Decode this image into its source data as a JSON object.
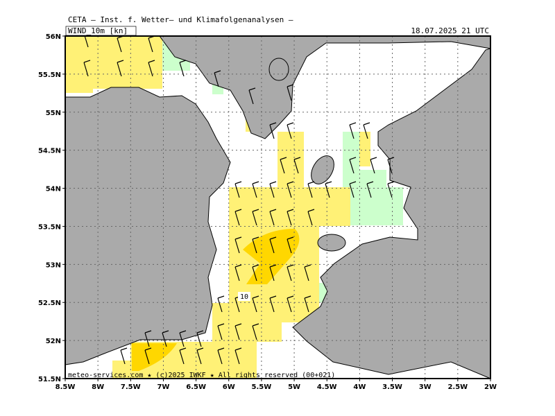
{
  "header": {
    "title": "CETA — Inst. f. Wetter— und Klimafolgenanalysen —",
    "parameter": "WIND_10m [kn]",
    "valid": "18.07.2025 21 UTC"
  },
  "map": {
    "lat_labels": [
      "56N",
      "55.5N",
      "55N",
      "54.5N",
      "54N",
      "53.5N",
      "53N",
      "52.5N",
      "52N",
      "51.5N"
    ],
    "lon_labels": [
      "8.5W",
      "8W",
      "7.5W",
      "7W",
      "6.5W",
      "6W",
      "5.5W",
      "5W",
      "4.5W",
      "4W",
      "3.5W",
      "3W",
      "2.5W",
      "2W"
    ],
    "contour_label": "10"
  },
  "footer": {
    "credit": "meteo-services.com ★ (c)2025 IWKF ★ All rights reserved (00+021)"
  }
}
